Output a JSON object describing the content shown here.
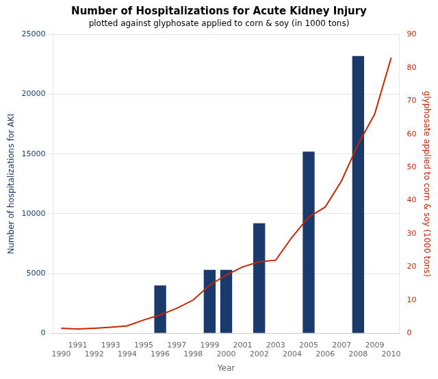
{
  "chart_data": {
    "type": "bar",
    "title": "Number of Hospitalizations for Acute Kidney Injury",
    "subtitle": "plotted against glyphosate applied to corn & soy (in 1000 tons)",
    "xlabel": "Year",
    "ylabel": "Number of hospitalizations for AKI",
    "y2label": "glyphosate applied to corn & soy (1000 tons)",
    "series": [
      {
        "type": "bar",
        "color": "#1a3a6b",
        "x": [
          1996,
          1999,
          2000,
          2002,
          2005,
          2008
        ],
        "values": [
          4000,
          5300,
          5300,
          9200,
          15200,
          23200
        ]
      },
      {
        "type": "line",
        "axis": "y2",
        "color": "#cc2200",
        "x": [
          1990,
          1991,
          1992,
          1993,
          1994,
          1995,
          1996,
          1997,
          1998,
          1999,
          2000,
          2001,
          2002,
          2003,
          2004,
          2005,
          2006,
          2007,
          2008,
          2009,
          2010
        ],
        "values": [
          1.5,
          1.3,
          1.5,
          1.8,
          2.2,
          4.0,
          5.5,
          7.5,
          10.0,
          14.5,
          17.5,
          20.0,
          21.5,
          22.0,
          29.0,
          35.0,
          38.0,
          46.0,
          57.0,
          66.0,
          83.0
        ]
      }
    ],
    "xlim": [
      1989.5,
      2010.5
    ],
    "xticks": [
      1990,
      1991,
      1992,
      1993,
      1994,
      1995,
      1996,
      1997,
      1998,
      1999,
      2000,
      2001,
      2002,
      2003,
      2004,
      2005,
      2006,
      2007,
      2008,
      2009,
      2010
    ],
    "ylim": [
      0,
      25000
    ],
    "yticks": [
      0,
      5000,
      10000,
      15000,
      20000,
      25000
    ],
    "y2lim": [
      0,
      90
    ],
    "y2ticks": [
      0,
      10,
      20,
      30,
      40,
      50,
      60,
      70,
      80,
      90
    ],
    "grid": true
  }
}
